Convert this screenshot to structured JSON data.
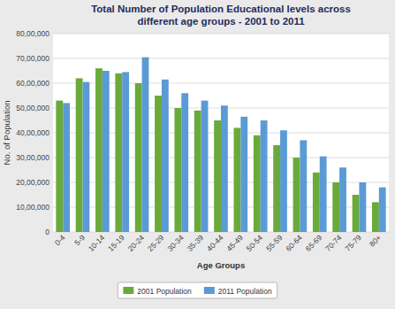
{
  "chart_data": {
    "type": "bar",
    "title": "Total Number of Population  Educational levels across\ndifferent age groups - 2001 to 2011",
    "x_label": "Age Groups",
    "y_label": "No. of Population",
    "categories": [
      "0-4",
      "5-9",
      "10-14",
      "15-19",
      "20-24",
      "25-29",
      "30-34",
      "35-39",
      "40-44",
      "45-49",
      "50-54",
      "55-59",
      "60-64",
      "65-69",
      "70-74",
      "75-79",
      "80+"
    ],
    "series": [
      {
        "name": "2001 Population",
        "color": "#6aaa3a",
        "values": [
          5300000,
          6200000,
          6600000,
          6400000,
          6000000,
          5500000,
          5000000,
          4900000,
          4500000,
          4200000,
          3900000,
          3500000,
          3000000,
          2400000,
          2000000,
          1500000,
          1200000
        ]
      },
      {
        "name": "2011 Population",
        "color": "#5b9bd5",
        "values": [
          5200000,
          6050000,
          6500000,
          6450000,
          7050000,
          6150000,
          5600000,
          5300000,
          5100000,
          4650000,
          4500000,
          4100000,
          3700000,
          3050000,
          2600000,
          2000000,
          1800000
        ]
      }
    ],
    "ylim": [
      0,
      8000000
    ],
    "yticks": [
      0,
      {
        "value": 1000000,
        "label": "10,00,000"
      },
      {
        "value": 2000000,
        "label": "20,00,000"
      },
      {
        "value": 3000000,
        "label": "30,00,000"
      },
      {
        "value": 4000000,
        "label": "40,00,000"
      },
      {
        "value": 5000000,
        "label": "50,00,000"
      },
      {
        "value": 6000000,
        "label": "60,00,000"
      },
      {
        "value": 7000000,
        "label": "70,00,000"
      },
      {
        "value": 8000000,
        "label": "80,00,000"
      }
    ],
    "grid": true,
    "legend": "bottom"
  }
}
